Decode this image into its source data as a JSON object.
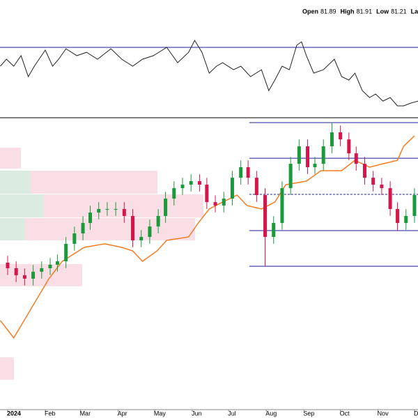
{
  "chart_data": {
    "type": "candlestick",
    "quote": [
      {
        "label": "Open",
        "value": 81.89
      },
      {
        "label": "High",
        "value": 81.91
      },
      {
        "label": "Low",
        "value": 81.21
      },
      {
        "label": "Las"
      }
    ],
    "xlim": [
      -6.3,
      337.9
    ],
    "xticks": [
      {
        "value": 0,
        "label": "2024"
      },
      {
        "value": 31,
        "label": "Feb"
      },
      {
        "value": 60,
        "label": "Mar"
      },
      {
        "value": 91,
        "label": "Apr"
      },
      {
        "value": 121,
        "label": "May"
      },
      {
        "value": 152,
        "label": "Jun"
      },
      {
        "value": 182,
        "label": "Jul"
      },
      {
        "value": 213,
        "label": "Aug"
      },
      {
        "value": 244,
        "label": "Sep"
      },
      {
        "value": 274,
        "label": "Oct"
      },
      {
        "value": 305,
        "label": "Nov"
      },
      {
        "value": 335,
        "label": "Dec"
      }
    ],
    "ylim": [
      59.43,
      89.29
    ],
    "up_color": "#1a9a3a",
    "down_color": "#d6154a",
    "x": [
      0,
      7,
      14,
      21,
      28,
      35,
      41,
      48,
      55,
      62,
      68,
      75,
      82,
      89,
      96,
      103,
      110,
      117,
      124,
      130,
      137,
      144,
      151,
      158,
      164,
      171,
      178,
      185,
      192,
      198,
      205,
      212,
      219,
      226,
      233,
      240,
      247,
      253,
      260,
      267,
      274,
      281,
      287,
      294,
      301,
      308,
      315,
      321,
      328,
      335
    ],
    "open": [
      74.5,
      73.93,
      73.21,
      72.86,
      73.57,
      73.93,
      74.29,
      74.64,
      76.43,
      77.5,
      78.57,
      79.64,
      80.0,
      80.0,
      80.0,
      79.29,
      76.79,
      77.14,
      78.21,
      79.29,
      81.07,
      82.14,
      82.5,
      82.86,
      82.5,
      80.71,
      80.36,
      81.07,
      83.21,
      84.29,
      83.21,
      81.43,
      77.14,
      78.57,
      82.14,
      84.64,
      86.43,
      84.29,
      84.64,
      86.43,
      87.86,
      87.14,
      85.71,
      84.64,
      83.21,
      82.5,
      82.14,
      80.0,
      78.57,
      79.29
    ],
    "high": [
      75.2,
      74.63,
      73.91,
      74.27,
      74.63,
      74.99,
      75.34,
      77.13,
      78.2,
      79.27,
      80.34,
      80.7,
      80.7,
      80.7,
      80.7,
      79.99,
      77.84,
      78.91,
      79.99,
      81.77,
      82.84,
      83.2,
      83.56,
      83.56,
      83.2,
      81.41,
      81.77,
      83.91,
      84.99,
      84.99,
      83.91,
      82.13,
      79.27,
      82.84,
      85.34,
      87.13,
      87.13,
      85.34,
      87.13,
      88.9,
      88.56,
      87.84,
      86.41,
      85.34,
      83.91,
      83.2,
      82.84,
      80.7,
      79.99,
      82.13
    ],
    "low": [
      73.23,
      72.51,
      72.16,
      72.16,
      72.87,
      73.23,
      73.59,
      73.94,
      75.73,
      76.8,
      77.87,
      78.94,
      79.3,
      79.3,
      78.59,
      76.09,
      76.09,
      76.44,
      77.51,
      78.59,
      80.37,
      81.44,
      81.8,
      81.8,
      80.01,
      79.66,
      79.66,
      80.37,
      82.51,
      82.51,
      80.73,
      74.1,
      76.44,
      77.87,
      81.44,
      83.94,
      83.59,
      83.59,
      83.94,
      85.73,
      86.44,
      85.01,
      83.94,
      82.51,
      81.8,
      81.44,
      79.3,
      77.8,
      77.87,
      78.59
    ],
    "close": [
      73.93,
      73.21,
      72.86,
      73.57,
      73.93,
      74.29,
      74.64,
      76.43,
      77.5,
      78.57,
      79.64,
      80.0,
      80.0,
      80.0,
      79.29,
      76.79,
      77.14,
      78.21,
      79.29,
      81.07,
      82.14,
      82.5,
      82.86,
      82.5,
      80.71,
      80.36,
      81.07,
      83.21,
      84.29,
      83.21,
      81.43,
      77.14,
      78.57,
      82.14,
      84.64,
      86.43,
      84.29,
      84.64,
      86.43,
      87.86,
      87.14,
      85.71,
      84.64,
      83.21,
      82.5,
      82.14,
      80.0,
      78.57,
      79.29,
      81.43
    ],
    "overlay": {
      "color": "#f57c20",
      "x": [
        -6,
        5,
        17,
        34,
        45,
        63,
        80,
        94,
        103,
        111,
        123,
        131,
        149,
        157,
        166,
        177,
        189,
        197,
        209,
        220,
        229,
        246,
        258,
        275,
        286,
        298,
        309,
        321,
        326,
        335
      ],
      "values": [
        68.57,
        66.79,
        69.29,
        72.86,
        74.64,
        76.07,
        76.43,
        76.07,
        75.71,
        74.64,
        75.71,
        76.79,
        77.14,
        78.57,
        80.0,
        80.71,
        81.43,
        80.36,
        80.0,
        80.71,
        82.5,
        82.86,
        83.93,
        83.93,
        85.0,
        84.29,
        84.64,
        85.0,
        86.43,
        87.5
      ]
    },
    "levels": {
      "color": "#1c1c9c",
      "start": 199,
      "values": [
        88.86,
        85.21,
        81.5,
        77.79,
        74.14
      ],
      "dashed": [
        false,
        false,
        true,
        false,
        false
      ]
    },
    "volume_profile": {
      "up_color": "#d9ecdf",
      "down_color": "#f9dfe5",
      "rows": [
        {
          "low": 84.14,
          "high": 86.29,
          "up": 0,
          "down": 30
        },
        {
          "low": 81.57,
          "high": 83.93,
          "up": 44,
          "down": 182
        },
        {
          "low": 79.14,
          "high": 81.5,
          "up": 62,
          "down": 230
        },
        {
          "low": 76.79,
          "high": 79.07,
          "up": 36,
          "down": 244
        },
        {
          "low": 72.07,
          "high": 74.36,
          "up": 0,
          "down": 118
        },
        {
          "low": 62.5,
          "high": 64.79,
          "up": 0,
          "down": 20
        }
      ]
    },
    "indicator": {
      "color": "#222",
      "ref_color": "#1c1c9c",
      "ylim": [
        0,
        100
      ],
      "ref": 67.6,
      "x": [
        -6,
        -1,
        5,
        11,
        17,
        22,
        31,
        37,
        42,
        48,
        57,
        65,
        74,
        85,
        94,
        103,
        111,
        120,
        131,
        140,
        149,
        154,
        160,
        166,
        172,
        177,
        186,
        192,
        200,
        209,
        215,
        220,
        226,
        232,
        238,
        242,
        246,
        252,
        260,
        269,
        275,
        281,
        286,
        292,
        298,
        303,
        309,
        315,
        321,
        326,
        332,
        338
      ],
      "values": [
        49.3,
        56.1,
        49.3,
        59.5,
        39.2,
        49.3,
        64.9,
        49.3,
        56.1,
        66.2,
        59.5,
        62.8,
        56.1,
        66.2,
        56.1,
        49.3,
        56.1,
        59.5,
        67.6,
        52.7,
        62.8,
        74.3,
        62.8,
        42.6,
        49.3,
        52.7,
        45.9,
        49.3,
        39.2,
        45.9,
        25.7,
        35.8,
        49.3,
        45.9,
        69.6,
        73.0,
        59.5,
        42.6,
        45.9,
        56.1,
        39.2,
        35.8,
        42.6,
        25.7,
        18.9,
        22.3,
        15.5,
        18.9,
        10.8,
        10.8,
        13.5,
        15.5
      ]
    }
  }
}
